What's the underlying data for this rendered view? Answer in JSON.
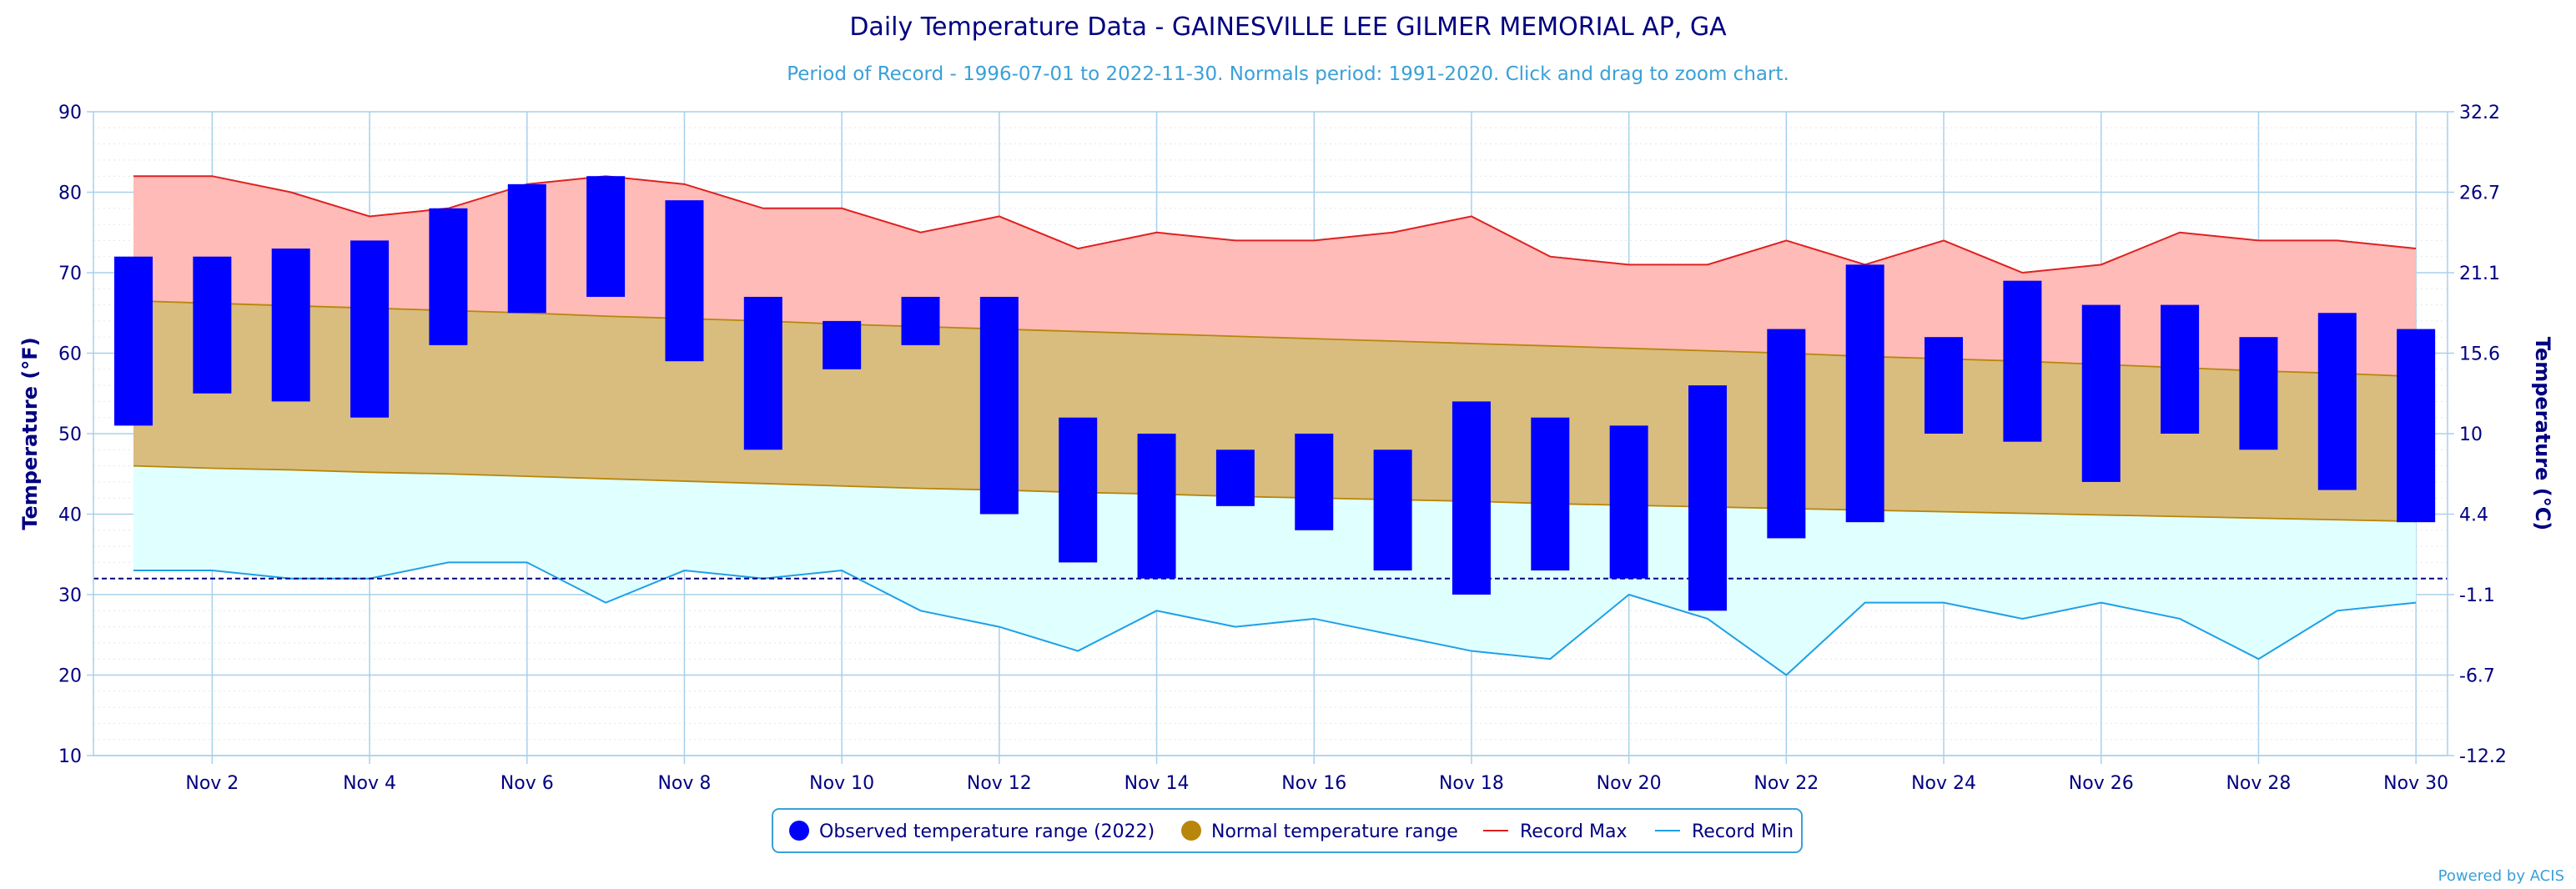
{
  "title": "Daily Temperature Data - GAINESVILLE LEE GILMER MEMORIAL AP, GA",
  "subtitle": "Period of Record - 1996-07-01 to 2022-11-30. Normals period: 1991-2020. Click and drag to zoom chart.",
  "credit": "Powered by ACIS",
  "colors": {
    "observed": "#0000ff",
    "normal_fill": "#d9bd7e",
    "normal_line": "#b8860b",
    "record_max_fill": "#ffbbb7",
    "record_max_line": "#e02020",
    "record_min_fill": "#e0ffff",
    "record_min_line": "#1ea0e6",
    "grid": "#a8d0ea",
    "freeze_line": "#000080"
  },
  "legend": [
    {
      "label": "Observed temperature range (2022)",
      "icon": "blue-circle-icon"
    },
    {
      "label": "Normal temperature range",
      "icon": "gold-circle-icon"
    },
    {
      "label": "Record Max",
      "icon": "red-line-icon"
    },
    {
      "label": "Record Min",
      "icon": "cyan-line-icon"
    }
  ],
  "chart_data": {
    "type": "bar",
    "title": "Daily Temperature Data - GAINESVILLE LEE GILMER MEMORIAL AP, GA",
    "ylabel": "Temperature (°F)",
    "y2label": "Temperature (°C)",
    "ylim": [
      10,
      90
    ],
    "y_ticks": [
      "10",
      "20",
      "30",
      "40",
      "50",
      "60",
      "70",
      "80",
      "90"
    ],
    "y2_ticks": [
      "-12.2",
      "-6.7",
      "-1.1",
      "4.4",
      "10",
      "15.6",
      "21.1",
      "26.7",
      "32.2"
    ],
    "x_tick_labels": [
      "Nov 2",
      "Nov 4",
      "Nov 6",
      "Nov 8",
      "Nov 10",
      "Nov 12",
      "Nov 14",
      "Nov 16",
      "Nov 18",
      "Nov 20",
      "Nov 22",
      "Nov 24",
      "Nov 26",
      "Nov 28",
      "Nov 30"
    ],
    "x_tick_days": [
      2,
      4,
      6,
      8,
      10,
      12,
      14,
      16,
      18,
      20,
      22,
      24,
      26,
      28,
      30
    ],
    "days": [
      1,
      2,
      3,
      4,
      5,
      6,
      7,
      8,
      9,
      10,
      11,
      12,
      13,
      14,
      15,
      16,
      17,
      18,
      19,
      20,
      21,
      22,
      23,
      24,
      25,
      26,
      27,
      28,
      29,
      30
    ],
    "freeze_line_f": 32,
    "grid": true,
    "legend_position": "bottom",
    "series": [
      {
        "name": "Observed temperature range (2022)",
        "high": [
          72,
          72,
          73,
          74,
          78,
          81,
          82,
          79,
          67,
          64,
          67,
          67,
          52,
          50,
          48,
          50,
          48,
          54,
          52,
          51,
          56,
          63,
          71,
          62,
          69,
          66,
          66,
          62,
          65,
          63
        ],
        "low": [
          51,
          55,
          54,
          52,
          61,
          65,
          67,
          59,
          48,
          58,
          61,
          40,
          34,
          32,
          41,
          38,
          33,
          30,
          33,
          32,
          28,
          37,
          39,
          50,
          49,
          44,
          50,
          48,
          43,
          39
        ]
      },
      {
        "name": "Normal temperature range",
        "high": [
          66.5,
          66.2,
          65.9,
          65.6,
          65.3,
          65.0,
          64.6,
          64.3,
          64.0,
          63.6,
          63.3,
          63.0,
          62.7,
          62.4,
          62.1,
          61.8,
          61.5,
          61.2,
          60.9,
          60.6,
          60.3,
          60.0,
          59.6,
          59.3,
          59.0,
          58.6,
          58.2,
          57.8,
          57.5,
          57.1
        ],
        "low": [
          46.0,
          45.7,
          45.5,
          45.2,
          45.0,
          44.7,
          44.4,
          44.1,
          43.8,
          43.5,
          43.2,
          43.0,
          42.7,
          42.5,
          42.2,
          42.0,
          41.8,
          41.6,
          41.3,
          41.1,
          40.9,
          40.7,
          40.5,
          40.3,
          40.1,
          39.9,
          39.7,
          39.5,
          39.3,
          39.1
        ]
      },
      {
        "name": "Record Max",
        "values": [
          82,
          82,
          80,
          77,
          78,
          81,
          82,
          81,
          78,
          78,
          75,
          77,
          73,
          75,
          74,
          74,
          75,
          77,
          72,
          71,
          71,
          74,
          71,
          74,
          70,
          71,
          75,
          74,
          74,
          73
        ]
      },
      {
        "name": "Record Min",
        "values": [
          33,
          33,
          32,
          32,
          34,
          34,
          29,
          33,
          32,
          33,
          28,
          26,
          23,
          28,
          26,
          27,
          25,
          23,
          22,
          30,
          27,
          20,
          29,
          29,
          27,
          29,
          27,
          22,
          28,
          29
        ]
      }
    ]
  }
}
